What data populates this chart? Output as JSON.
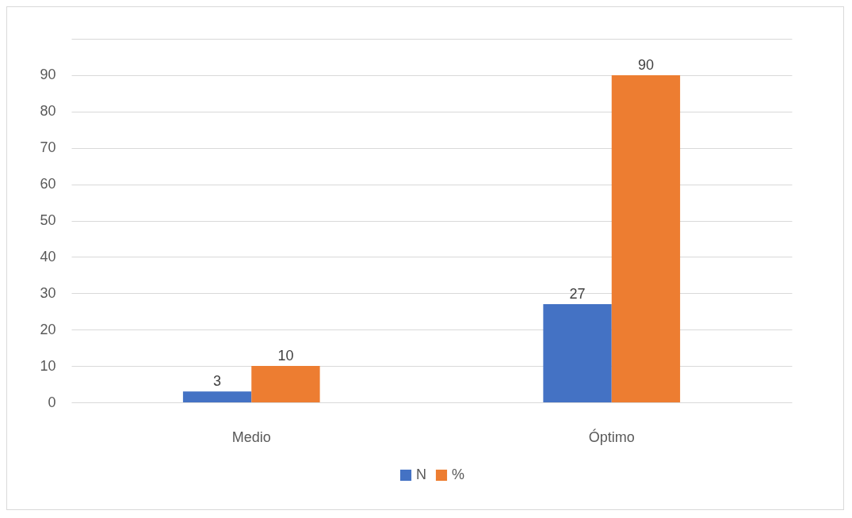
{
  "chart_data": {
    "type": "bar",
    "categories": [
      "Medio",
      "Óptimo"
    ],
    "series": [
      {
        "name": "N",
        "color": "#4472c4",
        "values": [
          3,
          27
        ]
      },
      {
        "name": "%",
        "color": "#ed7d31",
        "values": [
          10,
          90
        ]
      }
    ],
    "ylim": [
      0,
      100
    ],
    "yticks": [
      0,
      10,
      20,
      30,
      40,
      50,
      60,
      70,
      80,
      90,
      {
        "value": 100,
        "label": null
      }
    ],
    "grid": "y",
    "legend": "bottom",
    "data_labels": true
  }
}
